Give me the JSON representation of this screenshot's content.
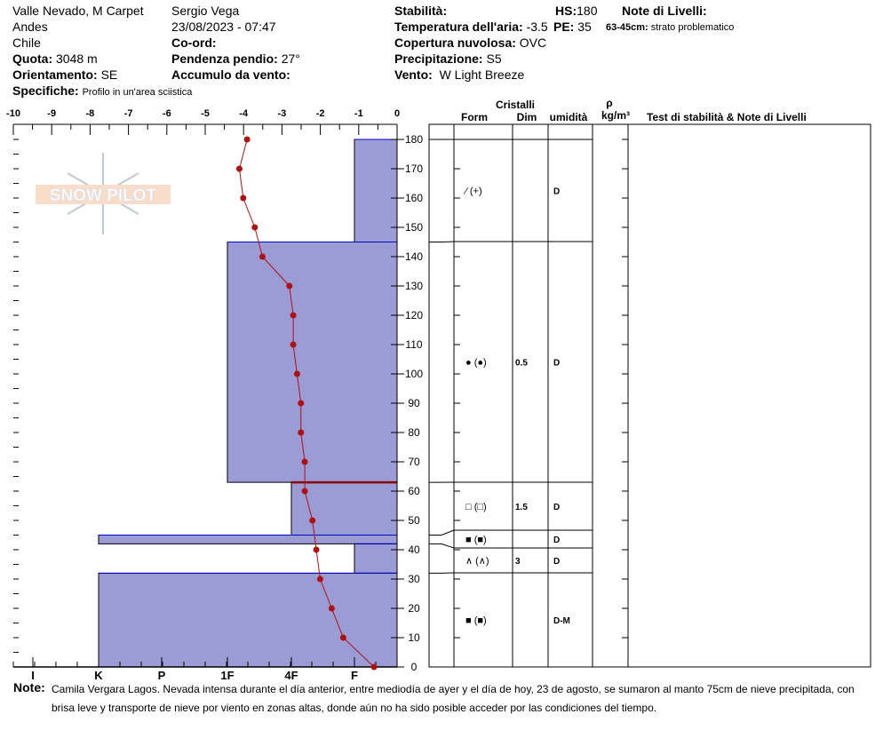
{
  "header": {
    "location": "Valle Nevado, M Carpet",
    "range": "Andes",
    "country": "Chile",
    "elevation_label": "Quota:",
    "elevation": "3048 m",
    "aspect_label": "Orientamento:",
    "aspect": "SE",
    "observer": "Sergio Vega",
    "datetime": "23/08/2023 - 07:47",
    "coord_label": "Co-ord:",
    "slope_label": "Pendenza pendio:",
    "slope": "27°",
    "wind_loading_label": "Accumulo da vento:",
    "stability_label": "Stabilità:",
    "air_temp_label": "Temperatura dell'aria:",
    "air_temp": "-3.5",
    "sky_label": "Copertura nuvolosa:",
    "sky": "OVC",
    "precip_label": "Precipitazione:",
    "precip": "S5",
    "wind_label": "Vento:",
    "wind": "W Light Breeze",
    "hs_label": "HS:",
    "hs": "180",
    "pe_label": "PE:",
    "pe": "35",
    "layer_notes_label": "Note di Livelli:",
    "layer_note_range": "63-45cm:",
    "layer_note": "strato problematico",
    "specifics_label": "Specifiche:",
    "specifics": "Profilo in un'area sciistica"
  },
  "logo": "SNOW PILOT",
  "table_header": {
    "crystals": "Cristalli",
    "form": "Form",
    "dim": "Dim",
    "moisture": "umidità",
    "rho": "ρ",
    "density_unit": "kg/m³",
    "tests": "Test di stabilità & Note di Livelli"
  },
  "grain_rows": [
    {
      "top": 180,
      "bottom": 145,
      "form": "⁄ (+)",
      "dim": "",
      "moisture": "D"
    },
    {
      "top": 145,
      "bottom": 63,
      "form": "● (●)",
      "dim": "0.5",
      "moisture": "D"
    },
    {
      "top": 63,
      "bottom": 47,
      "form": "□ (□)",
      "dim": "1.5",
      "moisture": "D"
    },
    {
      "top": 47,
      "bottom": 41,
      "form": "■ (■)",
      "dim": "",
      "moisture": "D"
    },
    {
      "top": 41,
      "bottom": 32,
      "form": "∧ (∧)",
      "dim": "3",
      "moisture": "D"
    },
    {
      "top": 32,
      "bottom": 0,
      "form": "■ (■)",
      "dim": "",
      "moisture": "D-M"
    }
  ],
  "note_label": "Note:",
  "note": "Camila Vergara Lagos. Nevada intensa durante el día anterior, entre mediodía de ayer y el día de hoy, 23 de agosto, se sumaron al manto 75cm de nieve precipitada, con brisa leve y transporte de nieve por viento en zonas altas, donde aún no ha sido posible acceder por las condiciones del tiempo.",
  "chart_data": {
    "type": "line",
    "temp_axis": {
      "ticks": [
        "-10",
        "-9",
        "-8",
        "-7",
        "-6",
        "-5",
        "-4",
        "-3",
        "-2",
        "-1",
        "0"
      ],
      "range": [
        -10,
        0
      ]
    },
    "height_axis": {
      "ticks": [
        "0",
        "10",
        "20",
        "30",
        "40",
        "50",
        "60",
        "70",
        "80",
        "90",
        "100",
        "110",
        "120",
        "130",
        "140",
        "150",
        "160",
        "170",
        "180"
      ],
      "range": [
        0,
        180
      ]
    },
    "hardness_axis": {
      "ticks": [
        "I",
        "K",
        "P",
        "1F",
        "4F",
        "F"
      ]
    },
    "temperature_profile": [
      [
        180,
        -3.9
      ],
      [
        170,
        -4.1
      ],
      [
        160,
        -4.0
      ],
      [
        150,
        -3.7
      ],
      [
        140,
        -3.5
      ],
      [
        130,
        -2.8
      ],
      [
        120,
        -2.7
      ],
      [
        110,
        -2.7
      ],
      [
        100,
        -2.6
      ],
      [
        90,
        -2.5
      ],
      [
        80,
        -2.5
      ],
      [
        70,
        -2.4
      ],
      [
        60,
        -2.4
      ],
      [
        50,
        -2.2
      ],
      [
        40,
        -2.1
      ],
      [
        30,
        -2.0
      ],
      [
        20,
        -1.7
      ],
      [
        10,
        -1.4
      ],
      [
        0,
        -0.6
      ]
    ],
    "hardness_layers": [
      {
        "top": 180,
        "bottom": 145,
        "hardness": "F"
      },
      {
        "top": 145,
        "bottom": 63,
        "hardness": "1F"
      },
      {
        "top": 63,
        "bottom": 45,
        "hardness": "4F"
      },
      {
        "top": 45,
        "bottom": 42,
        "hardness": "K"
      },
      {
        "top": 42,
        "bottom": 32,
        "hardness": "F"
      },
      {
        "top": 32,
        "bottom": 0,
        "hardness": "K"
      }
    ],
    "problem_layer_boundary": 63,
    "colors": {
      "layer_fill": "#9b9bd6",
      "temp_line": "#b01010",
      "problem_line": "#8b0000"
    }
  }
}
